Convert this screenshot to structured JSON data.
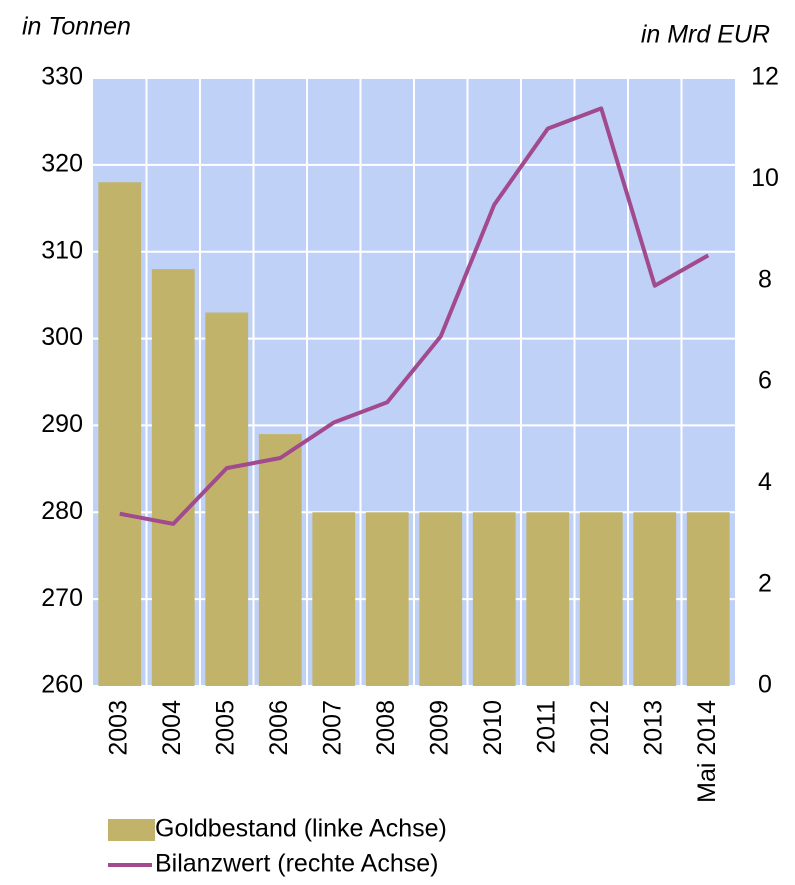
{
  "chart_data": {
    "type": "bar-line",
    "y_label": "in Tonnen",
    "y2_label": "in Mrd EUR",
    "categories": [
      "2003",
      "2004",
      "2005",
      "2006",
      "2007",
      "2008",
      "2009",
      "2010",
      "2011",
      "2012",
      "2013",
      "Mai 2014"
    ],
    "series": [
      {
        "name": "Goldbestand (linke Achse)",
        "type": "bar",
        "color": "#c1b46a",
        "values": [
          318,
          308,
          303,
          289,
          280,
          280,
          280,
          280,
          280,
          280,
          280,
          280
        ]
      },
      {
        "name": "Bilanzwert (rechte Achse)",
        "type": "line",
        "axis": "y2",
        "color": "#a24a8e",
        "values": [
          3.4,
          3.2,
          4.3,
          4.5,
          5.2,
          5.6,
          6.9,
          9.5,
          11.0,
          11.4,
          7.9,
          8.5
        ]
      }
    ],
    "ylim": [
      260,
      330
    ],
    "yticks": [
      260,
      270,
      280,
      290,
      300,
      310,
      320,
      330
    ],
    "y2lim": [
      0,
      12
    ],
    "y2ticks": [
      0,
      2,
      4,
      6,
      8,
      10,
      12
    ],
    "grid": true,
    "legend": "bottom-left"
  }
}
